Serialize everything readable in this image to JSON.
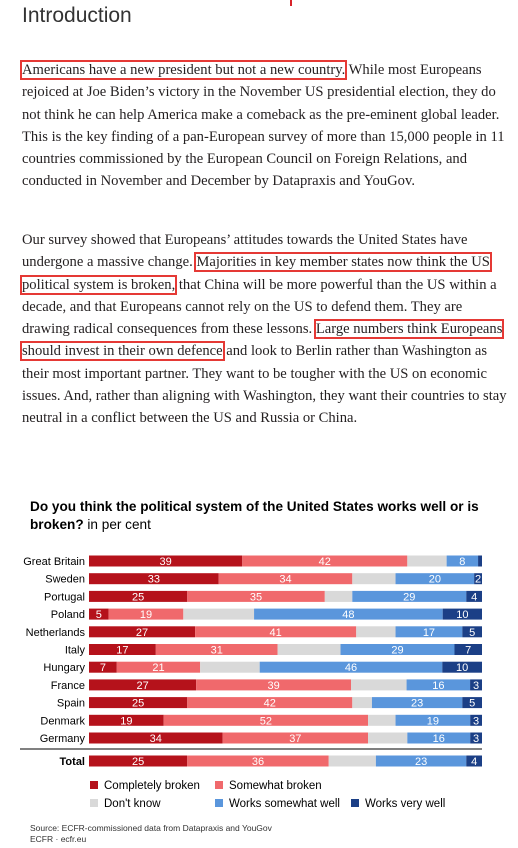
{
  "heading": "Introduction",
  "para1": {
    "highlight": "Americans have a new president but not a new country.",
    "rest": " While most Europeans rejoiced at Joe Biden’s victory in the November US presidential election, they do not think he can help America make a comeback as the pre-eminent global leader. This is the key finding of a pan-European survey of more than 15,000 people in 11 countries commissioned by the European Council on Foreign Relations, and conducted in November and December by Datapraxis and YouGov."
  },
  "para2": {
    "t1": "Our survey showed that Europeans’ attitudes towards the United States have undergone a massive change.",
    "h1": "Majorities in key member states now think the US political system is broken,",
    "t2": " that China will be more powerful than the US within a decade, and that Europeans cannot rely on the US to defend them. They are drawing radical consequences from these lessons.",
    "h2": "Large numbers think Europeans should invest in their own defence",
    "t3": " and look to Berlin rather than Washington as their most important partner. They want to be tougher with the US on economic issues. And, rather than aligning with Washington, they want their countries to stay neutral in a conflict between the US and Russia or China."
  },
  "chart_data": {
    "type": "bar",
    "orientation": "horizontal-stacked",
    "title": "Do you think the political system of the United States works well or is broken?",
    "subtitle": "in per cent",
    "categories": [
      "Great Britain",
      "Sweden",
      "Portugal",
      "Poland",
      "Netherlands",
      "Italy",
      "Hungary",
      "France",
      "Spain",
      "Denmark",
      "Germany",
      "Total"
    ],
    "series": [
      {
        "name": "Completely broken",
        "color": "#b5121b",
        "values": [
          39,
          33,
          25,
          5,
          27,
          17,
          7,
          27,
          25,
          19,
          34,
          25
        ]
      },
      {
        "name": "Somewhat broken",
        "color": "#f0696c",
        "values": [
          42,
          34,
          35,
          19,
          41,
          31,
          21,
          39,
          42,
          52,
          37,
          36
        ]
      },
      {
        "name": "Don't know",
        "color": "#d9d9d9",
        "values": [
          10,
          11,
          7,
          18,
          10,
          16,
          15,
          14,
          5,
          7,
          10,
          12
        ]
      },
      {
        "name": "Works somewhat well",
        "color": "#5a96dc",
        "values": [
          8,
          20,
          29,
          48,
          17,
          29,
          46,
          16,
          23,
          19,
          16,
          23
        ]
      },
      {
        "name": "Works very well",
        "color": "#1b3f86",
        "values": [
          1,
          2,
          4,
          10,
          5,
          7,
          10,
          3,
          5,
          3,
          3,
          4
        ]
      }
    ],
    "legend_position": "bottom"
  },
  "source": {
    "line1": "Source: ECFR-commissioned data from Datapraxis and YouGov",
    "line2": "ECFR · ecfr.eu"
  }
}
